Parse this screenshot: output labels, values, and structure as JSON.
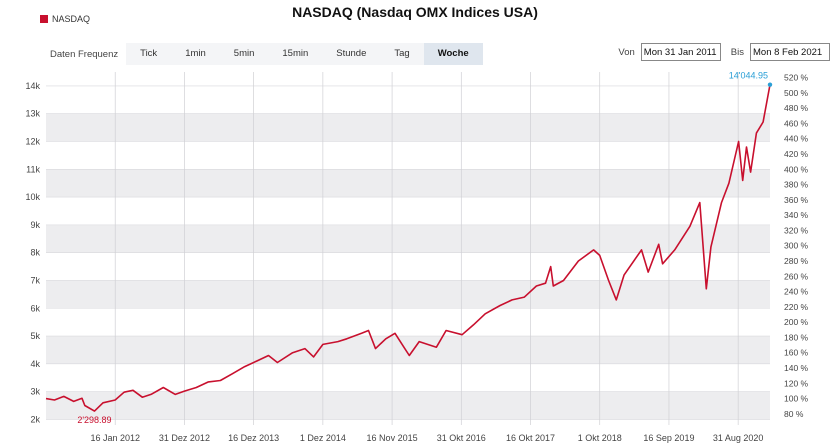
{
  "colors": {
    "series": "#c8102e",
    "last_label": "#2a9fd6",
    "band": "#ededef"
  },
  "toolbar": {
    "label": "Daten Frequenz",
    "tabs": [
      "Tick",
      "1min",
      "5min",
      "15min",
      "Stunde",
      "Tag",
      "Woche"
    ],
    "active_tab": "Woche"
  },
  "daterange": {
    "from_label": "Von",
    "from_value": "Mon 31 Jan 2011",
    "to_label": "Bis",
    "to_value": "Mon 8 Feb 2021"
  },
  "chart_data": {
    "type": "line",
    "title": "NASDAQ (Nasdaq OMX Indices USA)",
    "legend": [
      "NASDAQ"
    ],
    "legend_position": "top-left",
    "grid": true,
    "ylim": [
      1800,
      14500
    ],
    "yticks": [
      2000,
      3000,
      4000,
      5000,
      6000,
      7000,
      8000,
      9000,
      10000,
      11000,
      12000,
      13000,
      14000
    ],
    "ytick_labels": [
      "2k",
      "3k",
      "4k",
      "5k",
      "6k",
      "7k",
      "8k",
      "9k",
      "10k",
      "11k",
      "12k",
      "13k",
      "14k"
    ],
    "y2_ticks": [
      80,
      100,
      120,
      140,
      160,
      180,
      200,
      220,
      240,
      260,
      280,
      300,
      320,
      340,
      360,
      380,
      400,
      420,
      440,
      460,
      480,
      500,
      520
    ],
    "y2_tick_labels": [
      "80 %",
      "100 %",
      "120 %",
      "140 %",
      "160 %",
      "180 %",
      "200 %",
      "220 %",
      "240 %",
      "260 %",
      "280 %",
      "300 %",
      "320 %",
      "340 %",
      "360 %",
      "380 %",
      "400 %",
      "420 %",
      "440 %",
      "460 %",
      "480 %",
      "500 %",
      "520 %"
    ],
    "xlim": [
      "2011-01-31",
      "2021-02-08"
    ],
    "xticks": [
      "2012-01-16",
      "2012-12-31",
      "2013-12-16",
      "2014-12-01",
      "2015-11-16",
      "2016-10-31",
      "2017-10-16",
      "2018-10-01",
      "2019-09-16",
      "2020-08-31"
    ],
    "xtick_labels": [
      "16 Jan 2012",
      "31 Dez 2012",
      "16 Dez 2013",
      "1 Dez 2014",
      "16 Nov 2015",
      "31 Okt 2016",
      "16 Okt 2017",
      "1 Okt 2018",
      "16 Sep 2019",
      "31 Aug 2020"
    ],
    "annotations": [
      {
        "label": "2'298.89",
        "x": "2011-10-03",
        "y": 2298.89,
        "kind": "min"
      },
      {
        "label": "14'044.95",
        "x": "2021-02-08",
        "y": 14044.95,
        "kind": "last"
      }
    ],
    "series": [
      {
        "name": "NASDAQ",
        "x": [
          "2011-01-31",
          "2011-03-15",
          "2011-05-01",
          "2011-06-20",
          "2011-08-01",
          "2011-08-15",
          "2011-10-03",
          "2011-11-15",
          "2012-01-16",
          "2012-03-01",
          "2012-04-15",
          "2012-06-01",
          "2012-07-15",
          "2012-09-15",
          "2012-11-15",
          "2012-12-31",
          "2013-03-01",
          "2013-05-01",
          "2013-07-01",
          "2013-09-01",
          "2013-11-01",
          "2013-12-31",
          "2014-03-01",
          "2014-04-15",
          "2014-07-01",
          "2014-09-01",
          "2014-10-15",
          "2014-12-01",
          "2015-02-15",
          "2015-04-01",
          "2015-06-15",
          "2015-07-20",
          "2015-08-24",
          "2015-10-15",
          "2015-12-01",
          "2016-01-15",
          "2016-02-11",
          "2016-04-01",
          "2016-06-27",
          "2016-08-15",
          "2016-11-04",
          "2016-12-31",
          "2017-03-01",
          "2017-05-15",
          "2017-07-15",
          "2017-09-15",
          "2017-11-15",
          "2017-12-31",
          "2018-01-26",
          "2018-02-08",
          "2018-04-01",
          "2018-06-15",
          "2018-08-31",
          "2018-10-01",
          "2018-11-15",
          "2018-12-24",
          "2019-02-01",
          "2019-04-30",
          "2019-06-03",
          "2019-07-26",
          "2019-08-15",
          "2019-10-15",
          "2019-12-31",
          "2020-02-19",
          "2020-03-23",
          "2020-04-15",
          "2020-06-08",
          "2020-07-15",
          "2020-09-02",
          "2020-09-23",
          "2020-10-12",
          "2020-11-02",
          "2020-12-01",
          "2021-01-04",
          "2021-02-08"
        ],
        "values": [
          2750,
          2700,
          2830,
          2650,
          2760,
          2500,
          2300,
          2600,
          2700,
          2980,
          3050,
          2800,
          2900,
          3150,
          2900,
          3020,
          3150,
          3350,
          3400,
          3650,
          3900,
          4100,
          4300,
          4050,
          4400,
          4550,
          4250,
          4700,
          4800,
          4900,
          5100,
          5200,
          4550,
          4900,
          5100,
          4600,
          4300,
          4800,
          4600,
          5200,
          5050,
          5400,
          5800,
          6100,
          6300,
          6400,
          6800,
          6900,
          7500,
          6800,
          7000,
          7700,
          8100,
          7900,
          7000,
          6300,
          7200,
          8100,
          7300,
          8300,
          7600,
          8100,
          8950,
          9800,
          6700,
          8200,
          9800,
          10500,
          12000,
          10600,
          11800,
          10900,
          12300,
          12700,
          14044.95
        ]
      }
    ]
  }
}
